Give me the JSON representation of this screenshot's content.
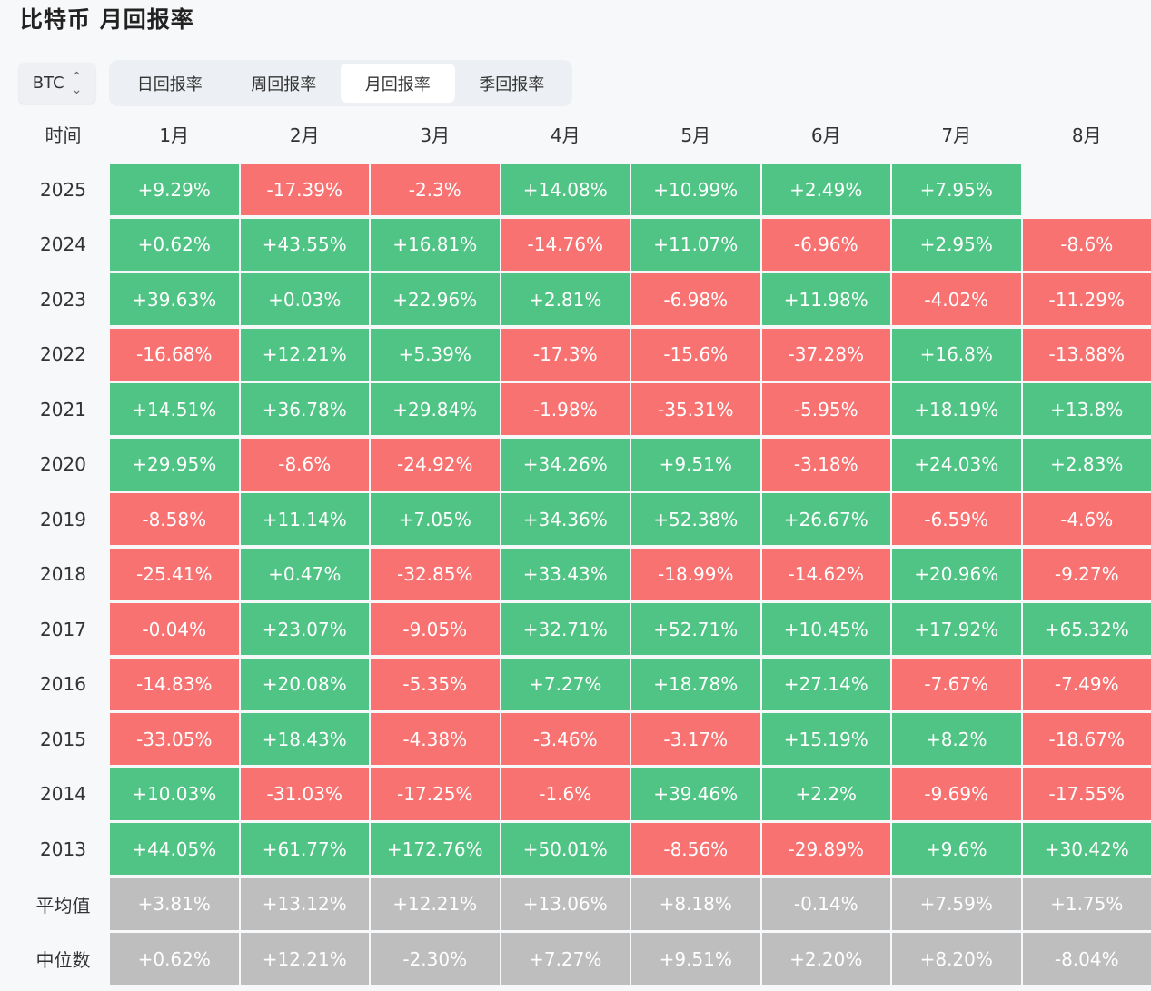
{
  "title": "比特币 月回报率",
  "asset_selector": {
    "value": "BTC",
    "icon": "chevron-up-down-icon"
  },
  "tabs": [
    {
      "label": "日回报率",
      "active": false
    },
    {
      "label": "周回报率",
      "active": false
    },
    {
      "label": "月回报率",
      "active": true
    },
    {
      "label": "季回报率",
      "active": false
    }
  ],
  "colors": {
    "positive": "#4fc484",
    "negative": "#f87272",
    "stat": "#bebebe"
  },
  "table": {
    "corner": "时间",
    "columns": [
      "1月",
      "2月",
      "3月",
      "4月",
      "5月",
      "6月",
      "7月",
      "8月"
    ],
    "rows": [
      {
        "label": "2025",
        "values": [
          "+9.29%",
          "-17.39%",
          "-2.3%",
          "+14.08%",
          "+10.99%",
          "+2.49%",
          "+7.95%",
          ""
        ]
      },
      {
        "label": "2024",
        "values": [
          "+0.62%",
          "+43.55%",
          "+16.81%",
          "-14.76%",
          "+11.07%",
          "-6.96%",
          "+2.95%",
          "-8.6%"
        ]
      },
      {
        "label": "2023",
        "values": [
          "+39.63%",
          "+0.03%",
          "+22.96%",
          "+2.81%",
          "-6.98%",
          "+11.98%",
          "-4.02%",
          "-11.29%"
        ]
      },
      {
        "label": "2022",
        "values": [
          "-16.68%",
          "+12.21%",
          "+5.39%",
          "-17.3%",
          "-15.6%",
          "-37.28%",
          "+16.8%",
          "-13.88%"
        ]
      },
      {
        "label": "2021",
        "values": [
          "+14.51%",
          "+36.78%",
          "+29.84%",
          "-1.98%",
          "-35.31%",
          "-5.95%",
          "+18.19%",
          "+13.8%"
        ]
      },
      {
        "label": "2020",
        "values": [
          "+29.95%",
          "-8.6%",
          "-24.92%",
          "+34.26%",
          "+9.51%",
          "-3.18%",
          "+24.03%",
          "+2.83%"
        ]
      },
      {
        "label": "2019",
        "values": [
          "-8.58%",
          "+11.14%",
          "+7.05%",
          "+34.36%",
          "+52.38%",
          "+26.67%",
          "-6.59%",
          "-4.6%"
        ]
      },
      {
        "label": "2018",
        "values": [
          "-25.41%",
          "+0.47%",
          "-32.85%",
          "+33.43%",
          "-18.99%",
          "-14.62%",
          "+20.96%",
          "-9.27%"
        ]
      },
      {
        "label": "2017",
        "values": [
          "-0.04%",
          "+23.07%",
          "-9.05%",
          "+32.71%",
          "+52.71%",
          "+10.45%",
          "+17.92%",
          "+65.32%"
        ]
      },
      {
        "label": "2016",
        "values": [
          "-14.83%",
          "+20.08%",
          "-5.35%",
          "+7.27%",
          "+18.78%",
          "+27.14%",
          "-7.67%",
          "-7.49%"
        ]
      },
      {
        "label": "2015",
        "values": [
          "-33.05%",
          "+18.43%",
          "-4.38%",
          "-3.46%",
          "-3.17%",
          "+15.19%",
          "+8.2%",
          "-18.67%"
        ]
      },
      {
        "label": "2014",
        "values": [
          "+10.03%",
          "-31.03%",
          "-17.25%",
          "-1.6%",
          "+39.46%",
          "+2.2%",
          "-9.69%",
          "-17.55%"
        ]
      },
      {
        "label": "2013",
        "values": [
          "+44.05%",
          "+61.77%",
          "+172.76%",
          "+50.01%",
          "-8.56%",
          "-29.89%",
          "+9.6%",
          "+30.42%"
        ]
      }
    ],
    "stats": [
      {
        "label": "平均值",
        "values": [
          "+3.81%",
          "+13.12%",
          "+12.21%",
          "+13.06%",
          "+8.18%",
          "-0.14%",
          "+7.59%",
          "+1.75%"
        ]
      },
      {
        "label": "中位数",
        "values": [
          "+0.62%",
          "+12.21%",
          "-2.30%",
          "+7.27%",
          "+9.51%",
          "+2.20%",
          "+8.20%",
          "-8.04%"
        ]
      }
    ]
  }
}
